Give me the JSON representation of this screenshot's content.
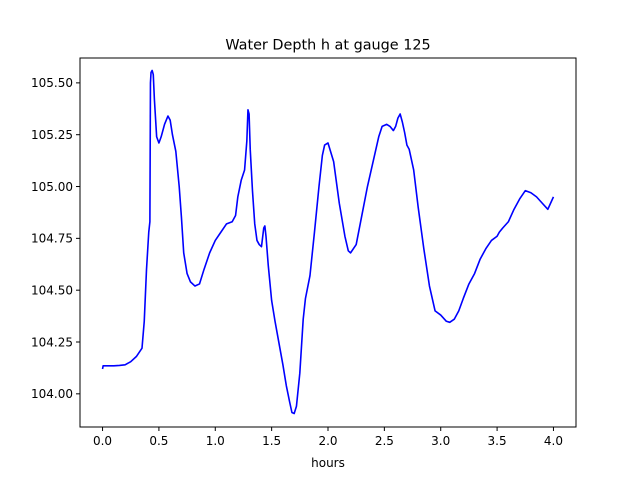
{
  "chart_data": {
    "type": "line",
    "title": "Water Depth h at gauge 125",
    "xlabel": "hours",
    "ylabel": "",
    "xlim": [
      -0.2,
      4.2
    ],
    "ylim": [
      103.84,
      105.62
    ],
    "xticks": [
      0.0,
      0.5,
      1.0,
      1.5,
      2.0,
      2.5,
      3.0,
      3.5,
      4.0
    ],
    "xtick_labels": [
      "0.0",
      "0.5",
      "1.0",
      "1.5",
      "2.0",
      "2.5",
      "3.0",
      "3.5",
      "4.0"
    ],
    "yticks": [
      104.0,
      104.25,
      104.5,
      104.75,
      105.0,
      105.25,
      105.5
    ],
    "ytick_labels": [
      "104.00",
      "104.25",
      "104.50",
      "104.75",
      "105.00",
      "105.25",
      "105.50"
    ],
    "grid": false,
    "series": [
      {
        "color": "#0000ff",
        "x": [
          0.0,
          0.005,
          0.05,
          0.1,
          0.15,
          0.2,
          0.25,
          0.3,
          0.35,
          0.37,
          0.39,
          0.41,
          0.42,
          0.425,
          0.43,
          0.44,
          0.45,
          0.46,
          0.48,
          0.5,
          0.52,
          0.55,
          0.58,
          0.6,
          0.62,
          0.65,
          0.68,
          0.7,
          0.72,
          0.75,
          0.78,
          0.82,
          0.86,
          0.9,
          0.95,
          1.0,
          1.05,
          1.1,
          1.15,
          1.18,
          1.2,
          1.23,
          1.26,
          1.28,
          1.29,
          1.3,
          1.31,
          1.33,
          1.35,
          1.37,
          1.39,
          1.41,
          1.43,
          1.44,
          1.45,
          1.47,
          1.5,
          1.53,
          1.56,
          1.6,
          1.63,
          1.66,
          1.68,
          1.7,
          1.72,
          1.75,
          1.78,
          1.8,
          1.84,
          1.88,
          1.92,
          1.95,
          1.97,
          2.0,
          2.05,
          2.1,
          2.15,
          2.18,
          2.2,
          2.25,
          2.3,
          2.35,
          2.4,
          2.45,
          2.48,
          2.52,
          2.55,
          2.58,
          2.6,
          2.62,
          2.64,
          2.66,
          2.68,
          2.7,
          2.72,
          2.76,
          2.8,
          2.85,
          2.9,
          2.95,
          3.0,
          3.05,
          3.08,
          3.12,
          3.16,
          3.2,
          3.25,
          3.3,
          3.35,
          3.4,
          3.45,
          3.5,
          3.52,
          3.55,
          3.6,
          3.65,
          3.7,
          3.75,
          3.8,
          3.85,
          3.9,
          3.95,
          4.0
        ],
        "y": [
          104.12,
          104.135,
          104.135,
          104.135,
          104.137,
          104.14,
          104.155,
          104.18,
          104.22,
          104.35,
          104.6,
          104.78,
          104.83,
          105.5,
          105.55,
          105.56,
          105.54,
          105.42,
          105.24,
          105.21,
          105.24,
          105.3,
          105.34,
          105.32,
          105.25,
          105.17,
          105.0,
          104.85,
          104.68,
          104.58,
          104.54,
          104.52,
          104.53,
          104.6,
          104.68,
          104.74,
          104.78,
          104.82,
          104.83,
          104.86,
          104.95,
          105.03,
          105.08,
          105.22,
          105.37,
          105.35,
          105.18,
          104.98,
          104.82,
          104.74,
          104.72,
          104.71,
          104.8,
          104.81,
          104.76,
          104.62,
          104.45,
          104.35,
          104.26,
          104.14,
          104.04,
          103.96,
          103.91,
          103.905,
          103.94,
          104.1,
          104.36,
          104.46,
          104.57,
          104.78,
          105.0,
          105.15,
          105.2,
          105.21,
          105.12,
          104.92,
          104.76,
          104.69,
          104.68,
          104.72,
          104.86,
          105.0,
          105.12,
          105.24,
          105.29,
          105.3,
          105.29,
          105.27,
          105.29,
          105.33,
          105.35,
          105.31,
          105.26,
          105.2,
          105.18,
          105.08,
          104.9,
          104.7,
          104.52,
          104.4,
          104.38,
          104.35,
          104.345,
          104.36,
          104.4,
          104.46,
          104.53,
          104.58,
          104.65,
          104.7,
          104.74,
          104.76,
          104.78,
          104.8,
          104.83,
          104.89,
          104.94,
          104.98,
          104.97,
          104.95,
          104.92,
          104.89,
          104.95
        ]
      }
    ]
  }
}
